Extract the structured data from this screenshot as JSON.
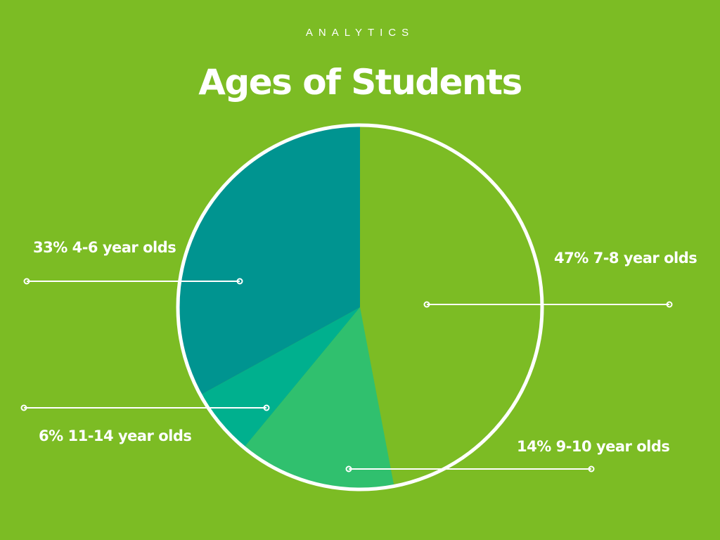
{
  "header": {
    "kicker": "ANALYTICS",
    "title": "Ages of Students"
  },
  "chart_data": {
    "type": "pie",
    "title": "Ages of Students",
    "slices": [
      {
        "label": "7-8 year olds",
        "value": 47,
        "display": "47% 7-8 year olds",
        "color": "#7cbc24"
      },
      {
        "label": "9-10 year olds",
        "value": 14,
        "display": "14% 9-10 year olds",
        "color": "#30c06e"
      },
      {
        "label": "11-14 year olds",
        "value": 6,
        "display": "6% 11-14 year olds",
        "color": "#00b08e"
      },
      {
        "label": "4-6 year olds",
        "value": 33,
        "display": "33% 4-6 year olds",
        "color": "#009490"
      }
    ],
    "outline_color": "#ffffff"
  }
}
